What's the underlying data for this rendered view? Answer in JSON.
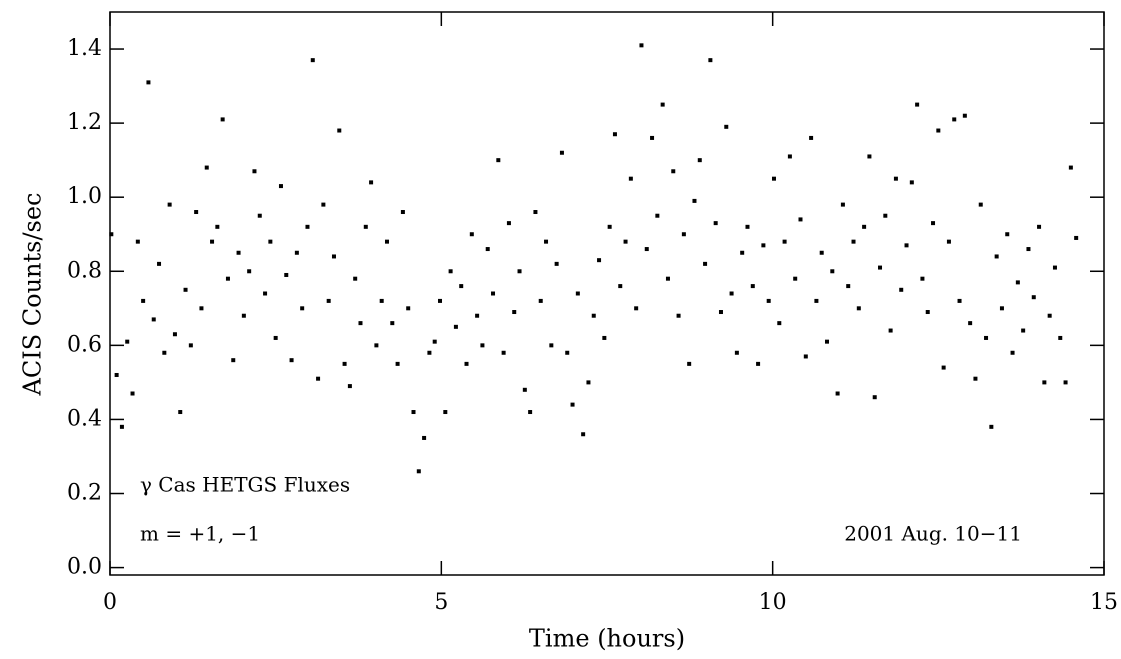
{
  "chart_data": {
    "type": "scatter",
    "xlabel": "Time (hours)",
    "ylabel": "ACIS Counts/sec",
    "annotations": [
      "γ Cas HETGS Fluxes",
      "m = +1, −1",
      "2001 Aug. 10−11"
    ],
    "xlim": [
      0,
      15
    ],
    "ylim": [
      -0.02,
      1.5
    ],
    "xticks": [
      0,
      5,
      10,
      15
    ],
    "yticks": [
      {
        "value": 0,
        "label": "0.0"
      },
      0.2,
      0.4,
      0.6,
      0.8,
      {
        "value": 1,
        "label": "1.0"
      },
      1.2,
      1.4
    ],
    "color": "#000000",
    "x": [
      0.02,
      0.1,
      0.18,
      0.26,
      0.34,
      0.42,
      0.5,
      0.58,
      0.66,
      0.74,
      0.82,
      0.9,
      0.98,
      1.06,
      1.14,
      1.22,
      1.3,
      1.38,
      1.46,
      1.54,
      1.62,
      1.7,
      1.78,
      1.86,
      1.94,
      2.02,
      2.1,
      2.18,
      2.26,
      2.34,
      2.42,
      2.5,
      2.58,
      2.66,
      2.74,
      2.82,
      2.9,
      2.98,
      3.06,
      3.14,
      3.22,
      3.3,
      3.38,
      3.46,
      3.54,
      3.62,
      3.7,
      3.78,
      3.86,
      3.94,
      4.02,
      4.1,
      4.18,
      4.26,
      4.34,
      4.42,
      4.5,
      4.58,
      4.66,
      4.74,
      4.82,
      4.9,
      4.98,
      5.06,
      5.14,
      5.22,
      5.3,
      5.38,
      5.46,
      5.54,
      5.62,
      5.7,
      5.78,
      5.86,
      5.94,
      6.02,
      6.1,
      6.18,
      6.26,
      6.34,
      6.42,
      6.5,
      6.58,
      6.66,
      6.74,
      6.82,
      6.9,
      6.98,
      7.06,
      7.14,
      7.22,
      7.3,
      7.38,
      7.46,
      7.54,
      7.62,
      7.7,
      7.78,
      7.86,
      7.94,
      8.02,
      8.1,
      8.18,
      8.26,
      8.34,
      8.42,
      8.5,
      8.58,
      8.66,
      8.74,
      8.82,
      8.9,
      8.98,
      9.06,
      9.14,
      9.22,
      9.3,
      9.38,
      9.46,
      9.54,
      9.62,
      9.7,
      9.78,
      9.86,
      9.94,
      10.02,
      10.1,
      10.18,
      10.26,
      10.34,
      10.42,
      10.5,
      10.58,
      10.66,
      10.74,
      10.82,
      10.9,
      10.98,
      11.06,
      11.14,
      11.22,
      11.3,
      11.38,
      11.46,
      11.54,
      11.62,
      11.7,
      11.78,
      11.86,
      11.94,
      12.02,
      12.1,
      12.18,
      12.26,
      12.34,
      12.42,
      12.5,
      12.58,
      12.66,
      12.74,
      12.82,
      12.9,
      12.98,
      13.06,
      13.14,
      13.22,
      13.3,
      13.38,
      13.46,
      13.54,
      13.62,
      13.7,
      13.78,
      13.86,
      13.94,
      14.02,
      14.1,
      14.18,
      14.26,
      14.34,
      14.42,
      14.5,
      14.58
    ],
    "values": [
      0.9,
      0.52,
      0.38,
      0.61,
      0.47,
      0.88,
      0.72,
      1.31,
      0.67,
      0.82,
      0.58,
      0.98,
      0.63,
      0.42,
      0.75,
      0.6,
      0.96,
      0.7,
      1.08,
      0.88,
      0.92,
      1.21,
      0.78,
      0.56,
      0.85,
      0.68,
      0.8,
      1.07,
      0.95,
      0.74,
      0.88,
      0.62,
      1.03,
      0.79,
      0.56,
      0.85,
      0.7,
      0.92,
      1.37,
      0.51,
      0.98,
      0.72,
      0.84,
      1.18,
      0.55,
      0.49,
      0.78,
      0.66,
      0.92,
      1.04,
      0.6,
      0.72,
      0.88,
      0.66,
      0.55,
      0.96,
      0.7,
      0.42,
      0.26,
      0.35,
      0.58,
      0.61,
      0.72,
      0.42,
      0.8,
      0.65,
      0.76,
      0.55,
      0.9,
      0.68,
      0.6,
      0.86,
      0.74,
      1.1,
      0.58,
      0.93,
      0.69,
      0.8,
      0.48,
      0.42,
      0.96,
      0.72,
      0.88,
      0.6,
      0.82,
      1.12,
      0.58,
      0.44,
      0.74,
      0.36,
      0.5,
      0.68,
      0.83,
      0.62,
      0.92,
      1.17,
      0.76,
      0.88,
      1.05,
      0.7,
      1.41,
      0.86,
      1.16,
      0.95,
      1.25,
      0.78,
      1.07,
      0.68,
      0.9,
      0.55,
      0.99,
      1.1,
      0.82,
      1.37,
      0.93,
      0.69,
      1.19,
      0.74,
      0.58,
      0.85,
      0.92,
      0.76,
      0.55,
      0.87,
      0.72,
      1.05,
      0.66,
      0.88,
      1.11,
      0.78,
      0.94,
      0.57,
      1.16,
      0.72,
      0.85,
      0.61,
      0.8,
      0.47,
      0.98,
      0.76,
      0.88,
      0.7,
      0.92,
      1.11,
      0.46,
      0.81,
      0.95,
      0.64,
      1.05,
      0.75,
      0.87,
      1.04,
      1.25,
      0.78,
      0.69,
      0.93,
      1.18,
      0.54,
      0.88,
      1.21,
      0.72,
      1.22,
      0.66,
      0.51,
      0.98,
      0.62,
      0.38,
      0.84,
      0.7,
      0.9,
      0.58,
      0.77,
      0.64,
      0.86,
      0.73,
      0.92,
      0.5,
      0.68,
      0.81,
      0.62,
      0.5,
      1.08,
      0.89
    ]
  }
}
